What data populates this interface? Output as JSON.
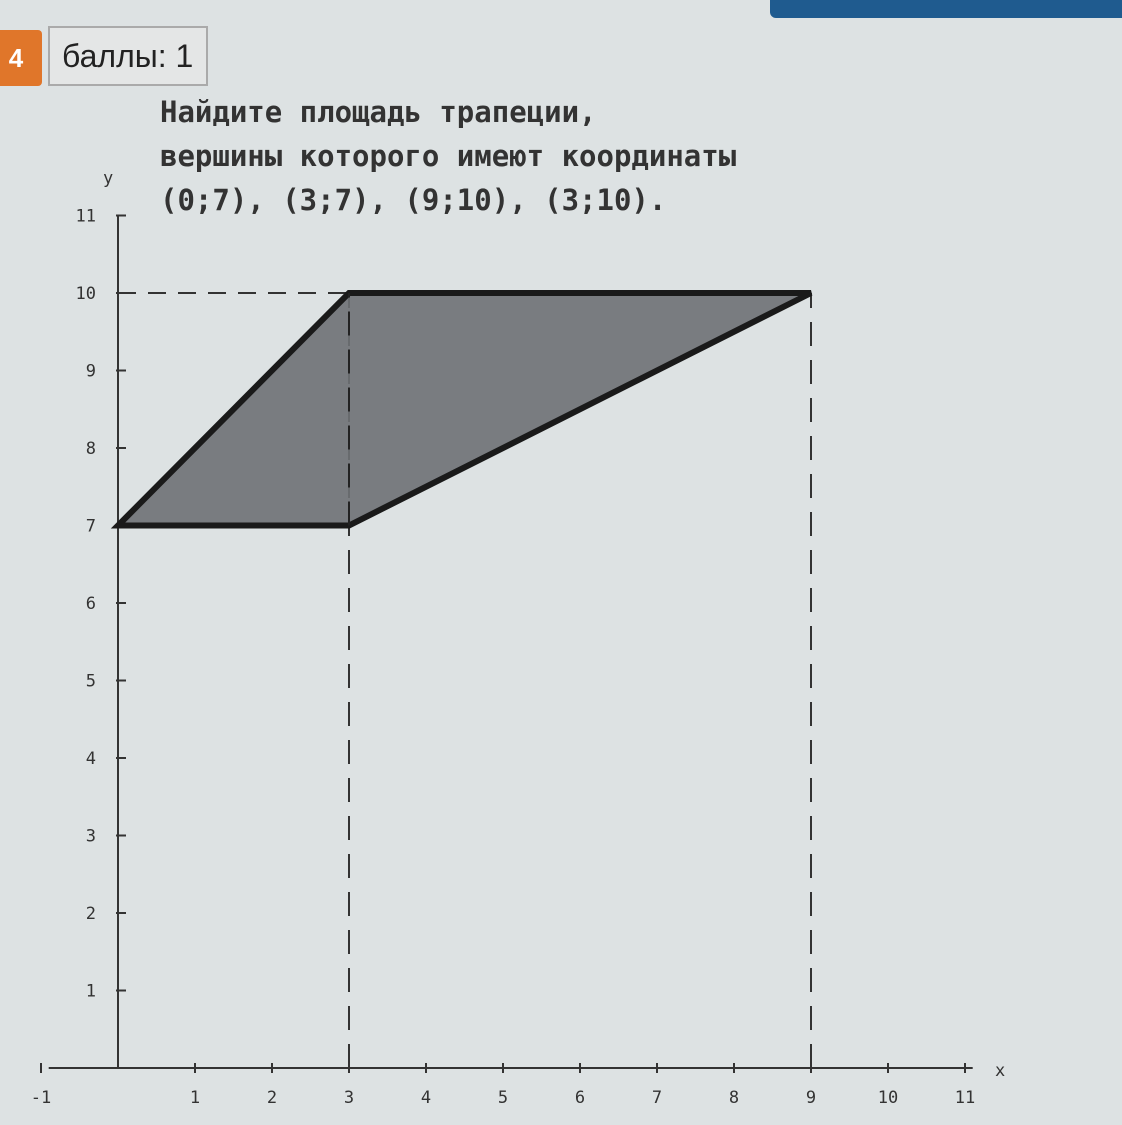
{
  "header": {
    "question_number": "4",
    "score_label": "баллы: 1"
  },
  "question": {
    "lines": [
      "Найдите площадь трапеции,",
      "вершины которого имеют координаты",
      "(0;7), (3;7), (9;10), (3;10)."
    ]
  },
  "figure": {
    "x_axis_label": "x",
    "y_axis_label": "y",
    "x_ticks": [
      -1,
      1,
      2,
      3,
      4,
      5,
      6,
      7,
      8,
      9,
      10,
      11
    ],
    "y_ticks": [
      1,
      2,
      3,
      4,
      5,
      6,
      7,
      8,
      9,
      10,
      11
    ],
    "xlim": [
      -1,
      11
    ],
    "ylim": [
      0,
      11
    ],
    "vertices": [
      [
        0,
        7
      ],
      [
        3,
        7
      ],
      [
        9,
        10
      ],
      [
        3,
        10
      ]
    ],
    "fill_color": "#6e7174",
    "dashed_guides": {
      "horizontal_y": 10,
      "vertical_x": [
        3,
        9
      ]
    }
  }
}
